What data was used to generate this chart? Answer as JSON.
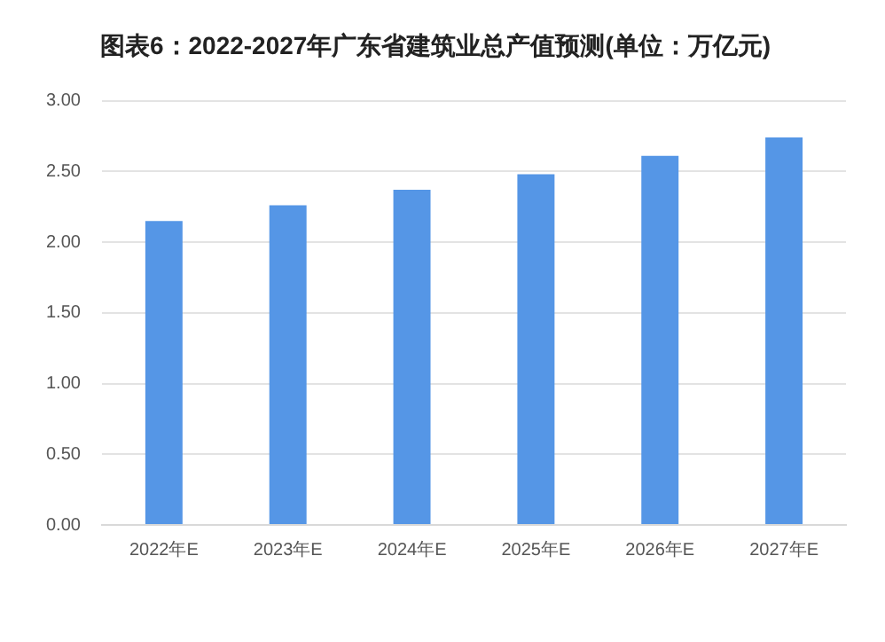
{
  "chart_data": {
    "type": "bar",
    "title": "图表6：2022-2027年广东省建筑业总产值预测(单位：万亿元)",
    "categories": [
      "2022年E",
      "2023年E",
      "2024年E",
      "2025年E",
      "2026年E",
      "2027年E"
    ],
    "values": [
      2.15,
      2.26,
      2.37,
      2.48,
      2.61,
      2.74
    ],
    "color": "#5596e6",
    "ylim": [
      0,
      3
    ],
    "yticks": [
      {
        "value": 0,
        "label": "0.00"
      },
      {
        "value": 0.5,
        "label": "0.50"
      },
      {
        "value": 1,
        "label": "1.00"
      },
      {
        "value": 1.5,
        "label": "1.50"
      },
      {
        "value": 2,
        "label": "2.00"
      },
      {
        "value": 2.5,
        "label": "2.50"
      },
      {
        "value": 3,
        "label": "3.00"
      }
    ],
    "grid": "y"
  }
}
